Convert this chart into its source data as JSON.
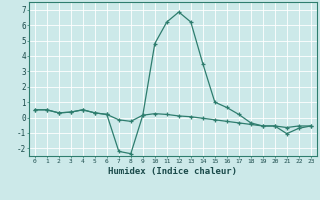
{
  "xlabel": "Humidex (Indice chaleur)",
  "ylabel": "",
  "bg_color": "#cce9e9",
  "grid_color": "#b0d8d8",
  "line_color": "#2e7d6e",
  "line1_x": [
    0,
    1,
    2,
    3,
    4,
    5,
    6,
    7,
    8,
    9,
    10,
    11,
    12,
    13,
    14,
    15,
    16,
    17,
    18,
    19,
    20,
    21,
    22,
    23
  ],
  "line1_y": [
    0.5,
    0.5,
    0.3,
    0.35,
    0.5,
    0.3,
    0.2,
    -0.15,
    -0.25,
    0.15,
    0.25,
    0.2,
    0.1,
    0.05,
    -0.05,
    -0.15,
    -0.25,
    -0.35,
    -0.45,
    -0.55,
    -0.55,
    -0.65,
    -0.55,
    -0.55
  ],
  "line2_x": [
    0,
    1,
    2,
    3,
    4,
    5,
    6,
    7,
    8,
    9,
    10,
    11,
    12,
    13,
    14,
    15,
    16,
    17,
    18,
    19,
    20,
    21,
    22,
    23
  ],
  "line2_y": [
    0.5,
    0.5,
    0.3,
    0.35,
    0.5,
    0.3,
    0.2,
    -2.2,
    -2.35,
    0.15,
    4.8,
    6.2,
    6.85,
    6.2,
    3.5,
    1.0,
    0.65,
    0.2,
    -0.35,
    -0.55,
    -0.55,
    -1.05,
    -0.7,
    -0.55
  ],
  "ylim": [
    -2.5,
    7.5
  ],
  "xlim": [
    -0.5,
    23.5
  ],
  "xticks": [
    0,
    1,
    2,
    3,
    4,
    5,
    6,
    7,
    8,
    9,
    10,
    11,
    12,
    13,
    14,
    15,
    16,
    17,
    18,
    19,
    20,
    21,
    22,
    23
  ],
  "yticks": [
    -2,
    -1,
    0,
    1,
    2,
    3,
    4,
    5,
    6,
    7
  ]
}
